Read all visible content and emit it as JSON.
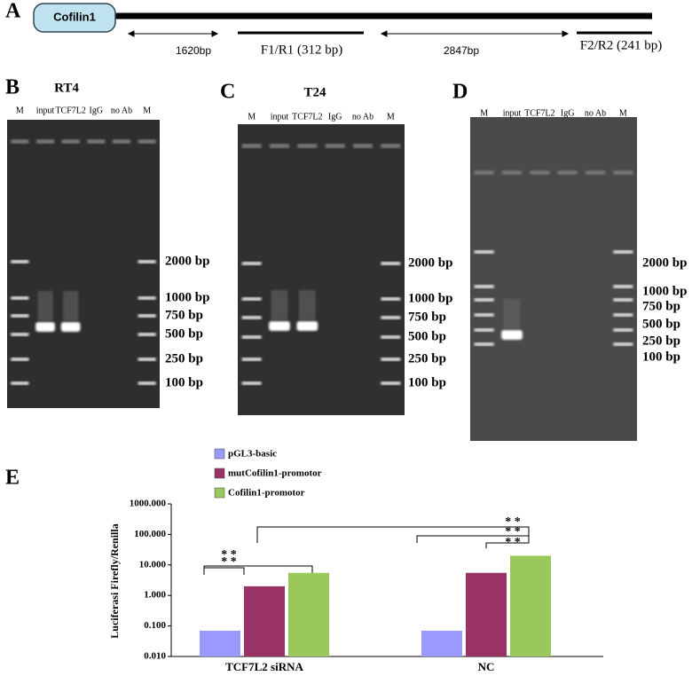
{
  "panel_a": {
    "label": "A",
    "gene": "Cofilin1",
    "segments": [
      "1620bp",
      "F1/R1 (312 bp)",
      "2847bp",
      "F2/R2 (241 bp)"
    ]
  },
  "gels": [
    {
      "label": "B",
      "title": "RT4",
      "lanes": [
        "M",
        "input",
        "TCF7L2",
        "IgG",
        "no Ab",
        "M"
      ],
      "markers": [
        "2000 bp",
        "1000 bp",
        "750 bp",
        "500 bp",
        "250 bp",
        "100 bp"
      ]
    },
    {
      "label": "C",
      "title": "T24",
      "lanes": [
        "M",
        "input",
        "TCF7L2",
        "IgG",
        "no Ab",
        "M"
      ],
      "markers": [
        "2000 bp",
        "1000 bp",
        "750 bp",
        "500 bp",
        "250 bp",
        "100 bp"
      ]
    },
    {
      "label": "D",
      "lanes": [
        "M",
        "input",
        "TCF7L2",
        "IgG",
        "no Ab",
        "M"
      ],
      "markers": [
        "2000 bp",
        "1000 bp",
        "750 bp",
        "500 bp",
        "250 bp",
        "100 bp"
      ]
    }
  ],
  "chart_data": {
    "label": "E",
    "type": "bar",
    "log_scale": true,
    "y_label": "Luciferasi Firefly/Renilla",
    "categories": [
      "TCF7L2  siRNA",
      "NC"
    ],
    "series": [
      {
        "name": "pGL3-basic",
        "color": "#9999ff",
        "values": [
          0.07,
          0.07
        ]
      },
      {
        "name": "mutCofilin1-promotor",
        "color": "#993366",
        "values": [
          2.0,
          5.5
        ]
      },
      {
        "name": "Cofilin1-promotor",
        "color": "#9bc85a",
        "values": [
          5.5,
          20
        ]
      }
    ],
    "ylim": [
      0.01,
      1000
    ],
    "yticks": [
      {
        "value": 0.01,
        "label": "0.010"
      },
      {
        "value": 0.1,
        "label": "0.100"
      },
      {
        "value": 1,
        "label": "1.000"
      },
      {
        "value": 10,
        "label": "10.000"
      },
      {
        "value": 100,
        "label": "100.000"
      },
      {
        "value": 1000,
        "label": "1000.000"
      }
    ],
    "annotations": [
      "* *",
      "* *",
      "* *",
      "* *",
      "* *"
    ]
  }
}
